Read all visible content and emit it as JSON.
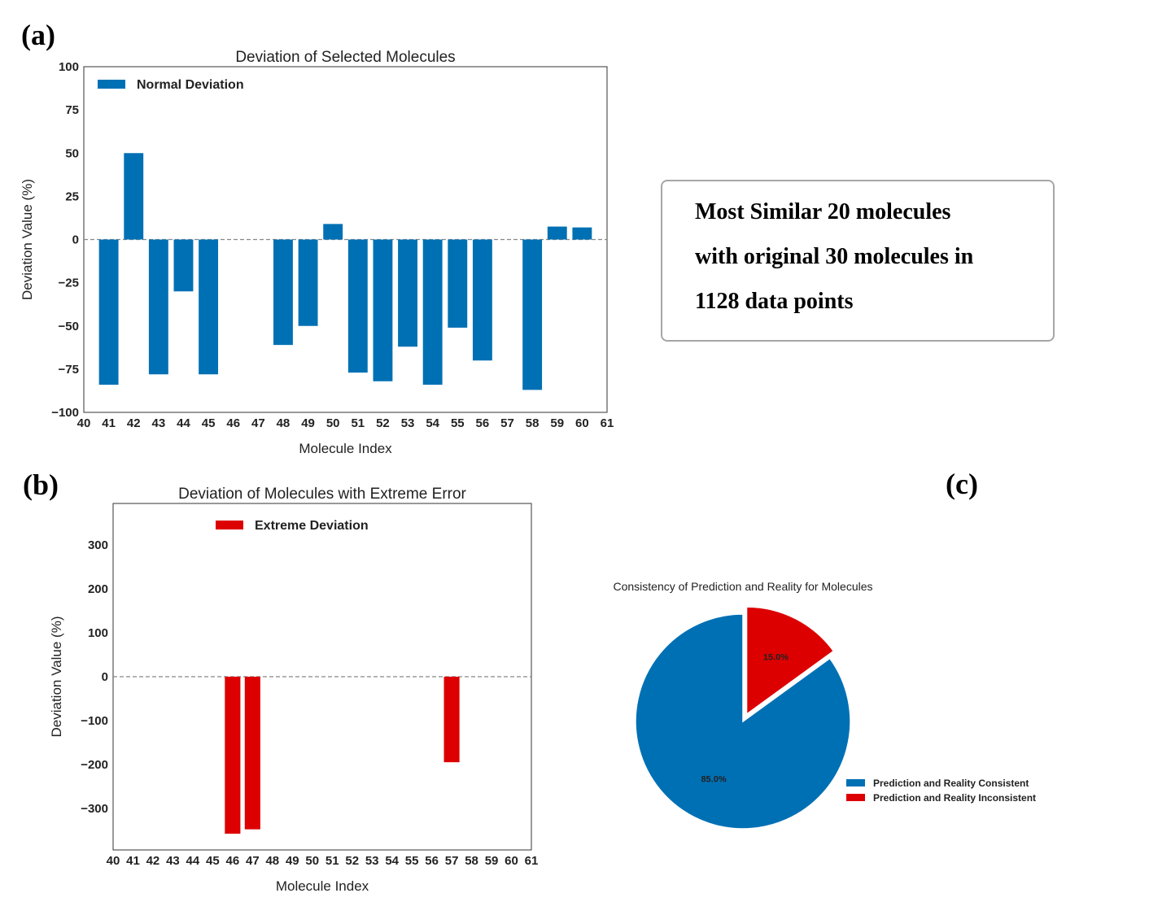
{
  "panels": {
    "a": "(a)",
    "b": "(b)",
    "c": "(c)"
  },
  "note": {
    "lines": [
      "Most Similar 20 molecules",
      "with original 30 molecules in",
      "1128 data points"
    ]
  },
  "chart_data": [
    {
      "id": "a",
      "type": "bar",
      "title": "Deviation of Selected Molecules",
      "xlabel": "Molecule Index",
      "ylabel": "Deviation Value (%)",
      "xlim": [
        40,
        61
      ],
      "ylim": [
        -100,
        100
      ],
      "xticks": [
        40,
        41,
        42,
        43,
        44,
        45,
        46,
        47,
        48,
        49,
        50,
        51,
        52,
        53,
        54,
        55,
        56,
        57,
        58,
        59,
        60,
        61
      ],
      "yticks": [
        -100,
        -75,
        -50,
        -25,
        0,
        25,
        50,
        75,
        100
      ],
      "ytick_labels": [
        "−100",
        "−75",
        "−50",
        "−25",
        "0",
        "25",
        "50",
        "75",
        "100"
      ],
      "zero_line": "dashed",
      "legend_position": "upper-left",
      "color": "#0070b4",
      "series": [
        {
          "name": "Normal Deviation",
          "x": [
            41,
            42,
            43,
            44,
            45,
            48,
            49,
            50,
            51,
            52,
            53,
            54,
            55,
            56,
            58,
            59,
            60
          ],
          "values": [
            -84,
            50,
            -78,
            -30,
            -78,
            -61,
            -50,
            9,
            -77,
            -82,
            -62,
            -84,
            -51,
            -70,
            -87,
            7.5,
            7
          ]
        }
      ]
    },
    {
      "id": "b",
      "type": "bar",
      "title": "Deviation of Molecules with Extreme Error",
      "xlabel": "Molecule Index",
      "ylabel": "Deviation Value (%)",
      "xlim": [
        40,
        61
      ],
      "ylim": [
        -395,
        395
      ],
      "xticks": [
        40,
        41,
        42,
        43,
        44,
        45,
        46,
        47,
        48,
        49,
        50,
        51,
        52,
        53,
        54,
        55,
        56,
        57,
        58,
        59,
        60,
        61
      ],
      "yticks": [
        -300,
        -200,
        -100,
        0,
        100,
        200,
        300
      ],
      "ytick_labels": [
        "−300",
        "−200",
        "−100",
        "0",
        "100",
        "200",
        "300"
      ],
      "zero_line": "dashed",
      "legend_position": "upper-center",
      "color": "#dd0000",
      "series": [
        {
          "name": "Extreme Deviation",
          "x": [
            46,
            47,
            57
          ],
          "values": [
            -358,
            -348,
            -195
          ]
        }
      ]
    },
    {
      "id": "c",
      "type": "pie",
      "title": "Consistency of Prediction and Reality for Molecules",
      "legend_position": "lower-right",
      "slices": [
        {
          "label": "Prediction and Reality Consistent",
          "value": 85.0,
          "pct_label": "85.0%",
          "color": "#0070b4",
          "exploded": false
        },
        {
          "label": "Prediction and Reality Inconsistent",
          "value": 15.0,
          "pct_label": "15.0%",
          "color": "#dd0000",
          "exploded": true
        }
      ]
    }
  ]
}
